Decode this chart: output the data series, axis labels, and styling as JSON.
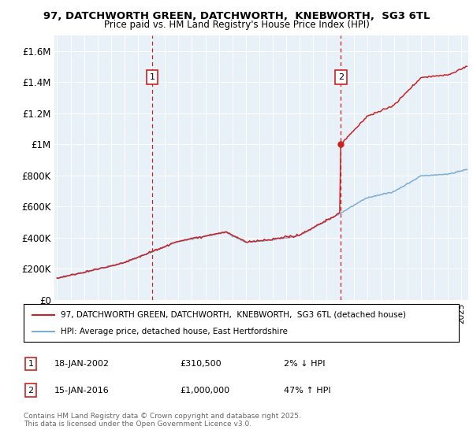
{
  "title_line1": "97, DATCHWORTH GREEN, DATCHWORTH,  KNEBWORTH,  SG3 6TL",
  "title_line2": "Price paid vs. HM Land Registry's House Price Index (HPI)",
  "ylabel_ticks": [
    "£0",
    "£200K",
    "£400K",
    "£600K",
    "£800K",
    "£1M",
    "£1.2M",
    "£1.4M",
    "£1.6M"
  ],
  "ytick_vals": [
    0,
    200000,
    400000,
    600000,
    800000,
    1000000,
    1200000,
    1400000,
    1600000
  ],
  "ylim": [
    0,
    1700000
  ],
  "xlim_start": 1994.8,
  "xlim_end": 2025.5,
  "bg_color": "#ffffff",
  "plot_bg": "#e8f0f8",
  "grid_color": "#ffffff",
  "red_color": "#cc2222",
  "blue_color": "#7dadd4",
  "marker1_x": 2002.05,
  "marker1_y": 310500,
  "marker2_x": 2016.05,
  "marker2_y": 1000000,
  "legend_label1": "97, DATCHWORTH GREEN, DATCHWORTH,  KNEBWORTH,  SG3 6TL (detached house)",
  "legend_label2": "HPI: Average price, detached house, East Hertfordshire",
  "note1_num": "1",
  "note1_date": "18-JAN-2002",
  "note1_price": "£310,500",
  "note1_hpi": "2% ↓ HPI",
  "note2_num": "2",
  "note2_date": "15-JAN-2016",
  "note2_price": "£1,000,000",
  "note2_hpi": "47% ↑ HPI",
  "footer": "Contains HM Land Registry data © Crown copyright and database right 2025.\nThis data is licensed under the Open Government Licence v3.0."
}
